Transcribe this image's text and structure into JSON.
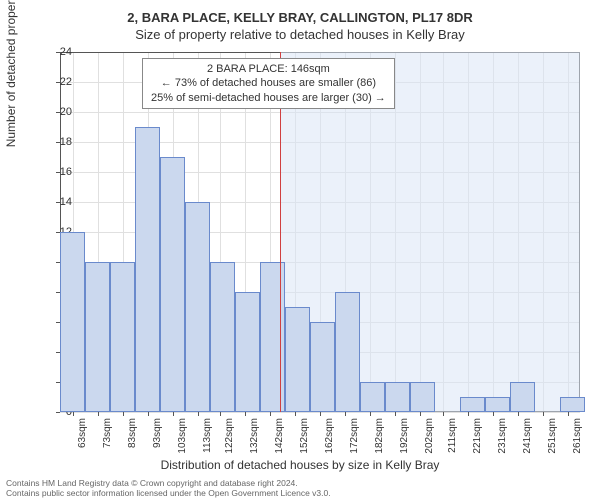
{
  "title": "2, BARA PLACE, KELLY BRAY, CALLINGTON, PL17 8DR",
  "subtitle": "Size of property relative to detached houses in Kelly Bray",
  "annotation": {
    "line1": "2 BARA PLACE: 146sqm",
    "line2": "← 73% of detached houses are smaller (86)",
    "line3": "25% of semi-detached houses are larger (30) →"
  },
  "ylabel": "Number of detached properties",
  "xlabel": "Distribution of detached houses by size in Kelly Bray",
  "footer_line1": "Contains HM Land Registry data © Crown copyright and database right 2024.",
  "footer_line2": "Contains public sector information licensed under the Open Government Licence v3.0.",
  "chart": {
    "type": "histogram",
    "ylim": [
      0,
      24
    ],
    "ytick_step": 2,
    "x_start": 58,
    "x_end": 266,
    "bin_width": 10,
    "xtick_labels": [
      "63sqm",
      "73sqm",
      "83sqm",
      "93sqm",
      "103sqm",
      "113sqm",
      "122sqm",
      "132sqm",
      "142sqm",
      "152sqm",
      "162sqm",
      "172sqm",
      "182sqm",
      "192sqm",
      "202sqm",
      "211sqm",
      "221sqm",
      "231sqm",
      "241sqm",
      "251sqm",
      "261sqm"
    ],
    "xtick_positions": [
      63,
      73,
      83,
      93,
      103,
      113,
      122,
      132,
      142,
      152,
      162,
      172,
      182,
      192,
      202,
      211,
      221,
      231,
      241,
      251,
      261
    ],
    "bars": [
      {
        "x": 58,
        "h": 12
      },
      {
        "x": 68,
        "h": 10
      },
      {
        "x": 78,
        "h": 10
      },
      {
        "x": 88,
        "h": 19
      },
      {
        "x": 98,
        "h": 17
      },
      {
        "x": 108,
        "h": 14
      },
      {
        "x": 118,
        "h": 10
      },
      {
        "x": 128,
        "h": 8
      },
      {
        "x": 138,
        "h": 10
      },
      {
        "x": 148,
        "h": 7
      },
      {
        "x": 158,
        "h": 6
      },
      {
        "x": 168,
        "h": 8
      },
      {
        "x": 178,
        "h": 2
      },
      {
        "x": 188,
        "h": 2
      },
      {
        "x": 198,
        "h": 2
      },
      {
        "x": 208,
        "h": 0
      },
      {
        "x": 218,
        "h": 1
      },
      {
        "x": 228,
        "h": 1
      },
      {
        "x": 238,
        "h": 2
      },
      {
        "x": 248,
        "h": 0
      },
      {
        "x": 258,
        "h": 1
      }
    ],
    "marker_value": 146,
    "overlay_left_color": "#ffffff",
    "overlay_right_color": "#dbe5f5",
    "bar_fill": "#cbd8ee",
    "bar_border": "#6a8acc",
    "grid_color": "#e0e0e0",
    "axis_color": "#555555",
    "background": "#ffffff"
  }
}
